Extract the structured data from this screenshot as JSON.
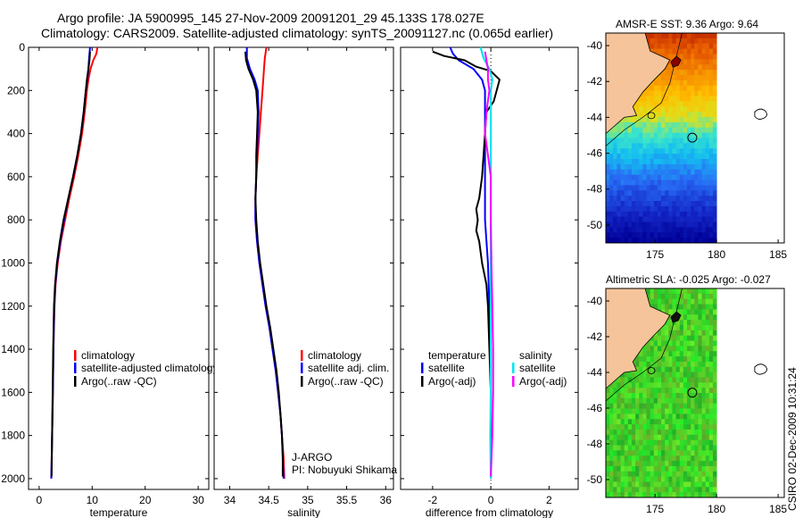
{
  "header": {
    "line1": "Argo profile: JA 5900995_145 27-Nov-2009 20091201_29 45.133S 178.027E",
    "line2": "Climatology: CARS2009. Satellite-adjusted climatology: synTS_20091127.nc (0.065d earlier)"
  },
  "footer": {
    "stamp": "CSIRO 02-Dec-2009 10:31:24"
  },
  "colors": {
    "clim": "#ff0000",
    "sat": "#0000ff",
    "argo": "#000000",
    "sal_sat": "#00e5ee",
    "sal_argo": "#ff00ff"
  },
  "chart_data": [
    {
      "type": "line",
      "xlabel": "temperature",
      "ylabel": "",
      "xlim": [
        -2,
        32
      ],
      "ylim": [
        0,
        2050
      ],
      "xticks": [
        "0",
        "10",
        "20",
        "30"
      ],
      "yticks": [
        "0",
        "200",
        "400",
        "600",
        "800",
        "1000",
        "1200",
        "1400",
        "1600",
        "1800",
        "2000"
      ],
      "legend": {
        "placement": "lower-right",
        "items": [
          "climatology",
          "satellite-adjusted climatology",
          "Argo(..raw -QC)"
        ]
      },
      "series": [
        {
          "name": "climatology",
          "color_key": "clim",
          "points": [
            [
              11.0,
              0
            ],
            [
              10.8,
              30
            ],
            [
              10.2,
              60
            ],
            [
              9.7,
              100
            ],
            [
              9.3,
              150
            ],
            [
              9.0,
              200
            ],
            [
              8.6,
              300
            ],
            [
              8.1,
              400
            ],
            [
              7.4,
              500
            ],
            [
              6.6,
              600
            ],
            [
              5.7,
              700
            ],
            [
              4.9,
              800
            ],
            [
              4.1,
              900
            ],
            [
              3.5,
              1000
            ],
            [
              3.1,
              1100
            ],
            [
              2.9,
              1200
            ],
            [
              2.7,
              1400
            ],
            [
              2.6,
              1600
            ],
            [
              2.45,
              1800
            ],
            [
              2.3,
              2000
            ]
          ]
        },
        {
          "name": "satellite-adjusted climatology",
          "color_key": "sat",
          "points": [
            [
              9.6,
              0
            ],
            [
              9.5,
              30
            ],
            [
              9.4,
              60
            ],
            [
              9.3,
              100
            ],
            [
              9.1,
              150
            ],
            [
              8.8,
              200
            ],
            [
              8.4,
              300
            ],
            [
              7.9,
              400
            ],
            [
              7.2,
              500
            ],
            [
              6.4,
              600
            ],
            [
              5.5,
              700
            ],
            [
              4.7,
              800
            ],
            [
              4.0,
              900
            ],
            [
              3.4,
              1000
            ],
            [
              3.05,
              1100
            ],
            [
              2.85,
              1200
            ],
            [
              2.7,
              1400
            ],
            [
              2.6,
              1600
            ],
            [
              2.45,
              1800
            ],
            [
              2.3,
              2000
            ]
          ]
        },
        {
          "name": "Argo(..raw -QC)",
          "color_key": "argo",
          "points": [
            [
              9.6,
              20
            ],
            [
              9.5,
              60
            ],
            [
              9.3,
              100
            ],
            [
              9.0,
              150
            ],
            [
              8.8,
              200
            ],
            [
              8.4,
              300
            ],
            [
              7.9,
              400
            ],
            [
              7.2,
              500
            ],
            [
              6.4,
              600
            ],
            [
              5.5,
              700
            ],
            [
              4.6,
              800
            ],
            [
              3.9,
              900
            ],
            [
              3.35,
              1000
            ],
            [
              3.0,
              1100
            ],
            [
              2.8,
              1200
            ],
            [
              2.65,
              1400
            ],
            [
              2.55,
              1600
            ],
            [
              2.45,
              1800
            ],
            [
              2.35,
              1990
            ]
          ]
        }
      ]
    },
    {
      "type": "line",
      "xlabel": "salinity",
      "xlim": [
        33.8,
        36.1
      ],
      "ylim": [
        0,
        2050
      ],
      "xticks": [
        "34",
        "34.5",
        "35",
        "35.5",
        "36"
      ],
      "legend": {
        "placement": "lower-right",
        "items": [
          "climatology",
          "satellite adj. clim.",
          "Argo(..raw -QC)"
        ]
      },
      "annotations": [
        "J-ARGO",
        "PI: Nobuyuki Shikama"
      ],
      "series": [
        {
          "name": "climatology",
          "color_key": "clim",
          "points": [
            [
              34.47,
              0
            ],
            [
              34.45,
              50
            ],
            [
              34.44,
              100
            ],
            [
              34.42,
              200
            ],
            [
              34.4,
              300
            ],
            [
              34.38,
              400
            ],
            [
              34.36,
              500
            ],
            [
              34.34,
              600
            ],
            [
              34.33,
              700
            ],
            [
              34.33,
              800
            ],
            [
              34.35,
              900
            ],
            [
              34.38,
              1000
            ],
            [
              34.42,
              1100
            ],
            [
              34.46,
              1200
            ],
            [
              34.51,
              1300
            ],
            [
              34.55,
              1400
            ],
            [
              34.59,
              1500
            ],
            [
              34.62,
              1600
            ],
            [
              34.65,
              1700
            ],
            [
              34.67,
              1800
            ],
            [
              34.69,
              1900
            ],
            [
              34.7,
              2000
            ]
          ]
        },
        {
          "name": "satellite adj. clim.",
          "color_key": "sat",
          "points": [
            [
              34.22,
              0
            ],
            [
              34.22,
              50
            ],
            [
              34.26,
              100
            ],
            [
              34.32,
              150
            ],
            [
              34.36,
              200
            ],
            [
              34.37,
              300
            ],
            [
              34.36,
              400
            ],
            [
              34.35,
              500
            ],
            [
              34.34,
              600
            ],
            [
              34.33,
              700
            ],
            [
              34.33,
              800
            ],
            [
              34.35,
              900
            ],
            [
              34.38,
              1000
            ],
            [
              34.42,
              1100
            ],
            [
              34.46,
              1200
            ],
            [
              34.51,
              1300
            ],
            [
              34.55,
              1400
            ],
            [
              34.59,
              1500
            ],
            [
              34.62,
              1600
            ],
            [
              34.65,
              1700
            ],
            [
              34.67,
              1800
            ],
            [
              34.68,
              1900
            ],
            [
              34.69,
              2000
            ]
          ]
        },
        {
          "name": "Argo(..raw -QC)",
          "color_key": "argo",
          "points": [
            [
              34.2,
              20
            ],
            [
              34.21,
              60
            ],
            [
              34.24,
              100
            ],
            [
              34.3,
              150
            ],
            [
              34.34,
              200
            ],
            [
              34.36,
              300
            ],
            [
              34.35,
              400
            ],
            [
              34.34,
              500
            ],
            [
              34.34,
              600
            ],
            [
              34.33,
              700
            ],
            [
              34.34,
              800
            ],
            [
              34.36,
              900
            ],
            [
              34.39,
              1000
            ],
            [
              34.43,
              1100
            ],
            [
              34.47,
              1200
            ],
            [
              34.52,
              1300
            ],
            [
              34.56,
              1400
            ],
            [
              34.6,
              1500
            ],
            [
              34.63,
              1600
            ],
            [
              34.65,
              1700
            ],
            [
              34.67,
              1800
            ],
            [
              34.68,
              1900
            ],
            [
              34.68,
              1990
            ]
          ]
        }
      ]
    },
    {
      "type": "line",
      "xlabel": "difference from climatology",
      "xlim": [
        -3.1,
        3.0
      ],
      "ylim": [
        0,
        2050
      ],
      "xticks": [
        "-2",
        "0",
        "2"
      ],
      "legend": {
        "placement": "lower",
        "groups": [
          {
            "title": "temperature",
            "items": [
              "satellite",
              "Argo(-adj)"
            ]
          },
          {
            "title": "salinity",
            "items": [
              "satellite",
              "Argo(-adj)"
            ]
          }
        ]
      },
      "series": [
        {
          "name": "temperature satellite",
          "color_key": "sat",
          "points": [
            [
              -1.4,
              0
            ],
            [
              -1.3,
              30
            ],
            [
              -1.1,
              60
            ],
            [
              -0.6,
              100
            ],
            [
              -0.3,
              150
            ],
            [
              -0.2,
              200
            ],
            [
              -0.2,
              400
            ],
            [
              -0.2,
              600
            ],
            [
              -0.2,
              800
            ],
            [
              -0.1,
              1000
            ],
            [
              -0.05,
              1200
            ],
            [
              0,
              1400
            ],
            [
              0,
              1600
            ],
            [
              0,
              1800
            ],
            [
              0,
              2000
            ]
          ]
        },
        {
          "name": "temperature Argo(-adj)",
          "color_key": "argo",
          "points": [
            [
              -2.0,
              20
            ],
            [
              -1.6,
              40
            ],
            [
              -0.9,
              60
            ],
            [
              -0.5,
              90
            ],
            [
              0.0,
              110
            ],
            [
              0.3,
              150
            ],
            [
              0.2,
              200
            ],
            [
              0.1,
              250
            ],
            [
              -0.15,
              300
            ],
            [
              -0.2,
              400
            ],
            [
              -0.25,
              500
            ],
            [
              -0.3,
              600
            ],
            [
              -0.4,
              700
            ],
            [
              -0.5,
              750
            ],
            [
              -0.45,
              800
            ],
            [
              -0.5,
              850
            ],
            [
              -0.4,
              900
            ],
            [
              -0.3,
              1000
            ],
            [
              -0.15,
              1100
            ],
            [
              -0.1,
              1200
            ],
            [
              -0.05,
              1400
            ],
            [
              0.0,
              1600
            ],
            [
              0.0,
              1800
            ],
            [
              0.0,
              1990
            ]
          ]
        },
        {
          "name": "salinity satellite",
          "color_key": "sal_sat",
          "points": [
            [
              -0.35,
              0
            ],
            [
              -0.25,
              50
            ],
            [
              -0.05,
              100
            ],
            [
              0.05,
              150
            ],
            [
              0.0,
              200
            ],
            [
              0.0,
              400
            ],
            [
              0.0,
              600
            ],
            [
              0.0,
              800
            ],
            [
              0.0,
              1000
            ],
            [
              0.0,
              1200
            ],
            [
              0.0,
              1400
            ],
            [
              0.0,
              1600
            ],
            [
              -0.02,
              1800
            ],
            [
              0.0,
              2000
            ]
          ]
        },
        {
          "name": "salinity Argo(-adj)",
          "color_key": "sal_argo",
          "points": [
            [
              -0.2,
              20
            ],
            [
              -0.15,
              60
            ],
            [
              -0.1,
              100
            ],
            [
              -0.1,
              150
            ],
            [
              -0.05,
              200
            ],
            [
              -0.15,
              300
            ],
            [
              -0.2,
              400
            ],
            [
              -0.1,
              500
            ],
            [
              0.0,
              600
            ],
            [
              0.0,
              800
            ],
            [
              0.02,
              1000
            ],
            [
              0.05,
              1200
            ],
            [
              0.08,
              1400
            ],
            [
              0.08,
              1600
            ],
            [
              0.05,
              1800
            ],
            [
              0.0,
              1990
            ]
          ]
        }
      ]
    },
    {
      "type": "heatmap",
      "title": "AMSR-E SST: 9.36 Argo: 9.64",
      "xlim": [
        171,
        185.5
      ],
      "ylim": [
        -51,
        -39.3
      ],
      "xticks": [
        "175",
        "180",
        "185"
      ],
      "yticks": [
        "-40",
        "-42",
        "-44",
        "-46",
        "-48",
        "-50"
      ],
      "argo_position": [
        178.027,
        -45.133
      ]
    },
    {
      "type": "heatmap",
      "title": "Altimetric SLA: -0.025 Argo: -0.027",
      "xlim": [
        171,
        185.5
      ],
      "ylim": [
        -51,
        -39.3
      ],
      "xticks": [
        "175",
        "180",
        "185"
      ],
      "yticks": [
        "-40",
        "-42",
        "-44",
        "-46",
        "-48",
        "-50"
      ],
      "argo_position": [
        178.027,
        -45.133
      ]
    }
  ]
}
